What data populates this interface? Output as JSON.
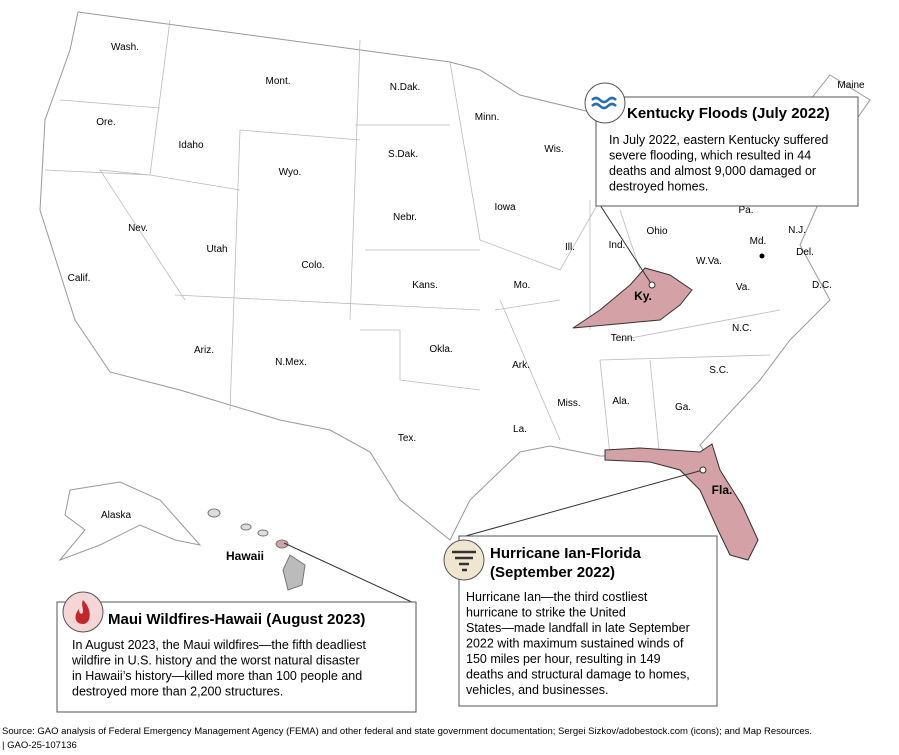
{
  "map": {
    "states": [
      "Wash.",
      "Ore.",
      "Idaho",
      "Mont.",
      "Wyo.",
      "N.Dak.",
      "S.Dak.",
      "Nebr.",
      "Minn.",
      "Wis.",
      "Iowa",
      "Ill.",
      "Ind.",
      "Ohio",
      "Pa.",
      "N.J.",
      "Del.",
      "Md.",
      "W.Va.",
      "Va.",
      "D.C.",
      "Nev.",
      "Calif.",
      "Utah",
      "Colo.",
      "Kans.",
      "Mo.",
      "Tenn.",
      "N.C.",
      "S.C.",
      "Ga.",
      "Ala.",
      "Miss.",
      "La.",
      "Ark.",
      "Okla.",
      "Tex.",
      "N.Mex.",
      "Ariz.",
      "Maine",
      "Alaska"
    ],
    "highlighted": [
      "Ky.",
      "Fla.",
      "Hawaii"
    ],
    "callouts": [
      {
        "title": [
          "Kentucky Floods (July 2022)"
        ],
        "body": [
          "In July 2022, eastern Kentucky suffered",
          "severe flooding, which resulted in 44",
          "deaths and almost 9,000 damaged or",
          "destroyed homes."
        ]
      },
      {
        "title": [
          "Hurricane Ian-Florida",
          "(September 2022)"
        ],
        "body": [
          "Hurricane Ian—the third costliest",
          "hurricane to strike the United",
          "States—made landfall in late September",
          "2022 with maximum sustained winds of",
          "150 miles per hour, resulting in 149",
          "deaths and structural damage to homes,",
          "vehicles, and businesses."
        ]
      },
      {
        "title": [
          "Maui Wildfires-Hawaii (August 2023)"
        ],
        "body": [
          "In August 2023, the Maui wildfires—the fifth deadliest",
          "wildfire in U.S. history and the worst natural disaster",
          "in Hawaii’s history—killed more than 100 people and",
          "destroyed more than 2,200 structures."
        ]
      }
    ],
    "source": "Source: GAO analysis of Federal Emergency Management Agency (FEMA) and other federal and state government documentation; Sergei Sizkov/adobestock.com (icons); and Map Resources.",
    "report_id": "| GAO-25-107136"
  }
}
